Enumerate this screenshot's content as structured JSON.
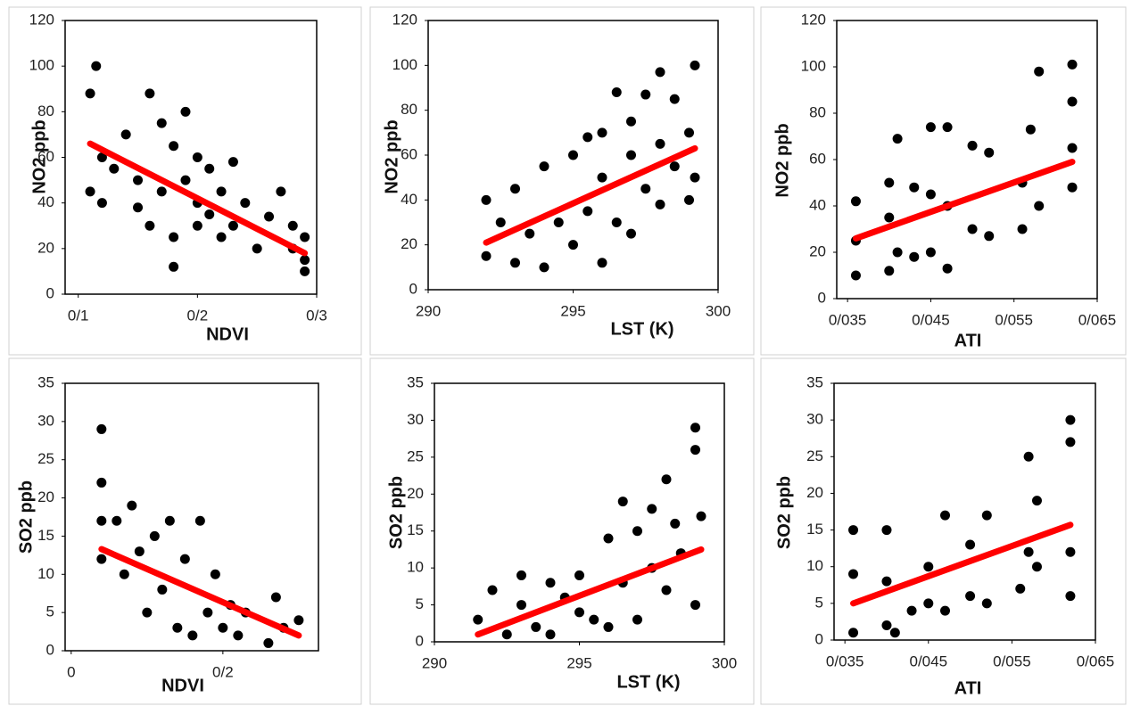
{
  "chart_data": [
    {
      "type": "scatter",
      "x_label": "NDVI",
      "y_label": "NO2 ppb",
      "color": "#000000",
      "x": [
        0.11,
        0.11,
        0.115,
        0.12,
        0.12,
        0.13,
        0.14,
        0.15,
        0.15,
        0.16,
        0.16,
        0.17,
        0.17,
        0.18,
        0.18,
        0.18,
        0.19,
        0.19,
        0.2,
        0.2,
        0.2,
        0.21,
        0.21,
        0.22,
        0.22,
        0.23,
        0.23,
        0.24,
        0.25,
        0.26,
        0.27,
        0.28,
        0.28,
        0.29,
        0.29,
        0.29
      ],
      "values": [
        88,
        45,
        100,
        60,
        40,
        55,
        70,
        50,
        38,
        88,
        30,
        75,
        45,
        65,
        25,
        12,
        80,
        50,
        40,
        60,
        30,
        55,
        35,
        45,
        25,
        58,
        30,
        40,
        20,
        34,
        45,
        20,
        30,
        15,
        10,
        25
      ],
      "trendline": {
        "x": [
          0.11,
          0.29
        ],
        "y": [
          66,
          18
        ],
        "color": "#ff0000"
      },
      "xlim": [
        0.089,
        0.3
      ],
      "ylim": [
        0,
        120
      ],
      "xticks": [
        {
          "value": 0.1,
          "label": "0/1"
        },
        {
          "value": 0.2,
          "label": "0/2"
        },
        {
          "value": 0.3,
          "label": "0/3"
        }
      ],
      "yticks": [
        0,
        20,
        40,
        60,
        80,
        100,
        120
      ]
    },
    {
      "type": "scatter",
      "x_label": "LST (K)",
      "y_label": "NO2 ppb",
      "color": "#000000",
      "x": [
        292,
        292,
        292.5,
        293,
        293,
        293.5,
        294,
        294,
        294.5,
        295,
        295,
        295.5,
        295.5,
        296,
        296,
        296,
        296.5,
        296.5,
        297,
        297,
        297,
        297.5,
        297.5,
        298,
        298,
        298,
        298.5,
        298.5,
        299,
        299,
        299.2,
        299.2
      ],
      "values": [
        15,
        40,
        30,
        12,
        45,
        25,
        10,
        55,
        30,
        20,
        60,
        35,
        68,
        12,
        50,
        70,
        30,
        88,
        25,
        60,
        75,
        45,
        87,
        38,
        65,
        97,
        55,
        85,
        40,
        70,
        100,
        50
      ],
      "trendline": {
        "x": [
          292,
          299.2
        ],
        "y": [
          21,
          63
        ],
        "color": "#ff0000"
      },
      "xlim": [
        290,
        300
      ],
      "ylim": [
        0,
        120
      ],
      "xticks": [
        290,
        295,
        300
      ],
      "yticks": [
        0,
        20,
        40,
        60,
        80,
        100,
        120
      ]
    },
    {
      "type": "scatter",
      "x_label": "ATI",
      "y_label": "NO2 ppb",
      "color": "#000000",
      "x": [
        0.036,
        0.036,
        0.036,
        0.04,
        0.04,
        0.04,
        0.041,
        0.041,
        0.043,
        0.043,
        0.045,
        0.045,
        0.045,
        0.047,
        0.047,
        0.047,
        0.05,
        0.05,
        0.052,
        0.052,
        0.056,
        0.056,
        0.057,
        0.058,
        0.058,
        0.062,
        0.062,
        0.062,
        0.062
      ],
      "values": [
        10,
        25,
        42,
        12,
        35,
        50,
        20,
        69,
        18,
        48,
        20,
        45,
        74,
        13,
        40,
        74,
        30,
        66,
        27,
        63,
        30,
        50,
        73,
        40,
        98,
        48,
        65,
        85,
        101
      ],
      "trendline": {
        "x": [
          0.036,
          0.062
        ],
        "y": [
          26,
          59
        ],
        "color": "#ff0000"
      },
      "xlim": [
        0.0337,
        0.065
      ],
      "ylim": [
        0,
        120
      ],
      "xticks": [
        {
          "value": 0.035,
          "label": "0/035"
        },
        {
          "value": 0.045,
          "label": "0/045"
        },
        {
          "value": 0.055,
          "label": "0/055"
        },
        {
          "value": 0.065,
          "label": "0/065"
        }
      ],
      "yticks": [
        0,
        20,
        40,
        60,
        80,
        100,
        120
      ]
    },
    {
      "type": "scatter",
      "x_label": "NDVI",
      "y_label": "SO2 ppb",
      "color": "#000000",
      "x": [
        0.04,
        0.04,
        0.04,
        0.04,
        0.06,
        0.07,
        0.08,
        0.09,
        0.1,
        0.11,
        0.12,
        0.13,
        0.14,
        0.15,
        0.16,
        0.17,
        0.18,
        0.19,
        0.2,
        0.21,
        0.22,
        0.23,
        0.26,
        0.27,
        0.28,
        0.3
      ],
      "values": [
        29,
        22,
        17,
        12,
        17,
        10,
        19,
        13,
        5,
        15,
        8,
        17,
        3,
        12,
        2,
        17,
        5,
        10,
        3,
        6,
        2,
        5,
        1,
        7,
        3,
        4
      ],
      "trendline": {
        "x": [
          0.04,
          0.3
        ],
        "y": [
          13.3,
          2
        ],
        "color": "#ff0000"
      },
      "xlim": [
        -0.008,
        0.326
      ],
      "ylim": [
        0,
        35
      ],
      "xticks": [
        0,
        {
          "value": 0.2,
          "label": "0/2"
        }
      ],
      "yticks": [
        0,
        5,
        10,
        15,
        20,
        25,
        30,
        35
      ]
    },
    {
      "type": "scatter",
      "x_label": "LST (K)",
      "y_label": "SO2 ppb",
      "color": "#000000",
      "x": [
        291.5,
        292,
        292.5,
        293,
        293,
        293.5,
        294,
        294,
        294.5,
        295,
        295,
        295.5,
        296,
        296,
        296.5,
        296.5,
        297,
        297,
        297.5,
        297.5,
        298,
        298,
        298.3,
        298.5,
        299,
        299,
        299,
        299.2
      ],
      "values": [
        3,
        7,
        1,
        5,
        9,
        2,
        8,
        1,
        6,
        4,
        9,
        3,
        14,
        2,
        8,
        19,
        3,
        15,
        10,
        18,
        7,
        22,
        16,
        12,
        5,
        29,
        26,
        17
      ],
      "trendline": {
        "x": [
          291.5,
          299.2
        ],
        "y": [
          1,
          12.5
        ],
        "color": "#ff0000"
      },
      "xlim": [
        290,
        300
      ],
      "ylim": [
        0,
        35
      ],
      "xticks": [
        290,
        295,
        300
      ],
      "yticks": [
        0,
        5,
        10,
        15,
        20,
        25,
        30,
        35
      ]
    },
    {
      "type": "scatter",
      "x_label": "ATI",
      "y_label": "SO2 ppb",
      "color": "#000000",
      "x": [
        0.036,
        0.036,
        0.036,
        0.04,
        0.04,
        0.04,
        0.041,
        0.043,
        0.045,
        0.045,
        0.047,
        0.047,
        0.05,
        0.05,
        0.052,
        0.052,
        0.056,
        0.057,
        0.057,
        0.058,
        0.058,
        0.062,
        0.062,
        0.062,
        0.062
      ],
      "values": [
        1,
        9,
        15,
        2,
        8,
        15,
        1,
        4,
        5,
        10,
        4,
        17,
        6,
        13,
        5,
        17,
        7,
        12,
        25,
        10,
        19,
        6,
        12,
        27,
        30
      ],
      "trendline": {
        "x": [
          0.036,
          0.062
        ],
        "y": [
          5,
          15.7
        ],
        "color": "#ff0000"
      },
      "xlim": [
        0.0337,
        0.065
      ],
      "ylim": [
        0,
        35
      ],
      "xticks": [
        {
          "value": 0.035,
          "label": "0/035"
        },
        {
          "value": 0.045,
          "label": "0/045"
        },
        {
          "value": 0.055,
          "label": "0/055"
        },
        {
          "value": 0.065,
          "label": "0/065"
        }
      ],
      "yticks": [
        0,
        5,
        10,
        15,
        20,
        25,
        30,
        35
      ]
    }
  ]
}
